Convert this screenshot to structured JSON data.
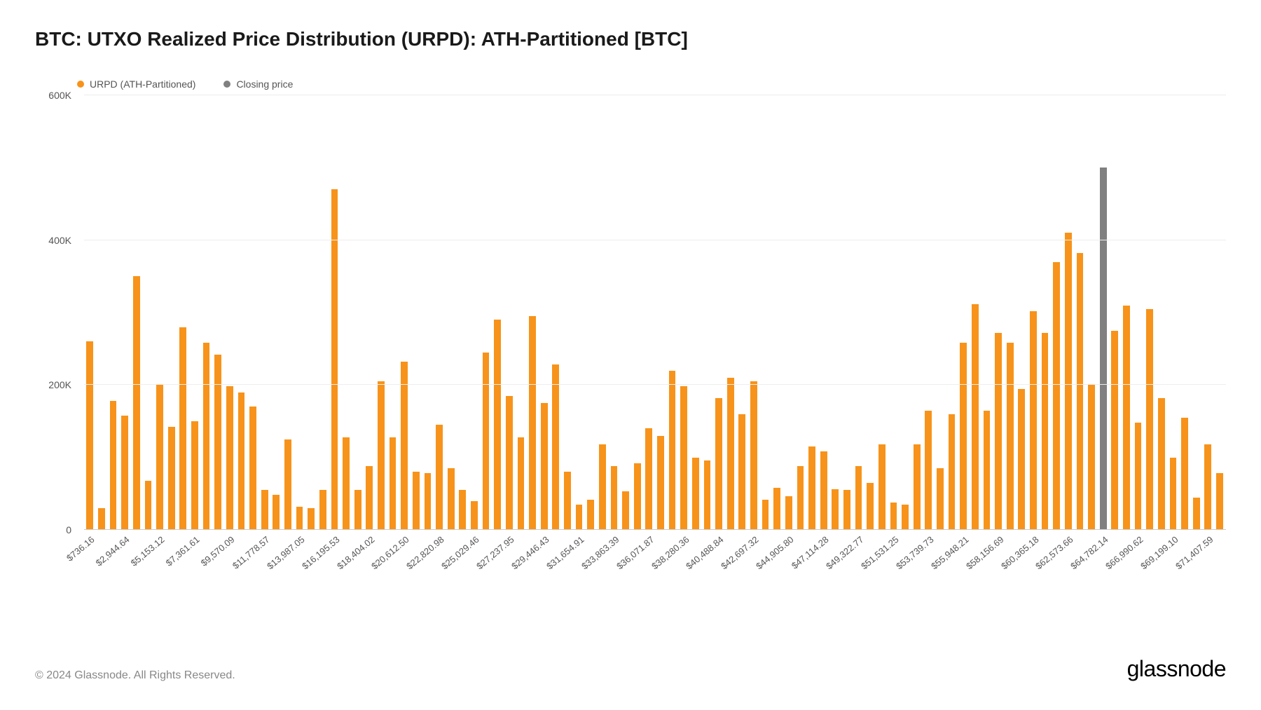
{
  "title": "BTC: UTXO Realized Price Distribution (URPD): ATH-Partitioned [BTC]",
  "legend": [
    {
      "label": "URPD (ATH-Partitioned)",
      "color": "#f7931a"
    },
    {
      "label": "Closing price",
      "color": "#808080"
    }
  ],
  "chart": {
    "type": "bar",
    "y": {
      "max": 600000,
      "ticks": [
        {
          "value": 0,
          "label": "0"
        },
        {
          "value": 200000,
          "label": "200K"
        },
        {
          "value": 400000,
          "label": "400K"
        },
        {
          "value": 600000,
          "label": "600K"
        }
      ]
    },
    "bar_color": "#f7931a",
    "closing_bar_color": "#808080",
    "grid_color": "#ededed",
    "baseline_color": "#cccccc",
    "background": "#ffffff",
    "x_labels": [
      "$736.16",
      "$2,944.64",
      "$5,153.12",
      "$7,361.61",
      "$9,570.09",
      "$11,778.57",
      "$13,987.05",
      "$16,195.53",
      "$18,404.02",
      "$20,612.50",
      "$22,820.98",
      "$25,029.46",
      "$27,237.95",
      "$29,446.43",
      "$31,654.91",
      "$33,863.39",
      "$36,071.87",
      "$38,280.36",
      "$40,488.84",
      "$42,697.32",
      "$44,905.80",
      "$47,114.28",
      "$49,322.77",
      "$51,531.25",
      "$53,739.73",
      "$55,948.21",
      "$58,156.69",
      "$60,365.18",
      "$62,573.66",
      "$64,782.14",
      "$66,990.62",
      "$69,199.10",
      "$71,407.59"
    ],
    "values": [
      260000,
      30000,
      178000,
      158000,
      350000,
      68000,
      200000,
      142000,
      280000,
      150000,
      258000,
      242000,
      198000,
      190000,
      170000,
      55000,
      48000,
      125000,
      32000,
      30000,
      55000,
      470000,
      128000,
      55000,
      88000,
      205000,
      128000,
      232000,
      80000,
      78000,
      145000,
      85000,
      55000,
      40000,
      245000,
      290000,
      185000,
      128000,
      295000,
      175000,
      228000,
      80000,
      35000,
      42000,
      118000,
      88000,
      53000,
      92000,
      140000,
      130000,
      220000,
      198000,
      100000,
      96000,
      182000,
      210000,
      160000,
      205000,
      42000,
      58000,
      46000,
      88000,
      115000,
      108000,
      56000,
      55000,
      88000,
      65000,
      118000,
      38000,
      35000,
      118000,
      165000,
      85000,
      160000,
      258000,
      312000,
      165000,
      272000,
      258000,
      195000,
      302000,
      272000,
      370000,
      410000,
      382000,
      200000,
      500000,
      275000,
      310000,
      148000,
      305000,
      182000,
      100000,
      155000,
      45000,
      118000,
      78000
    ],
    "closing_price_index": 87
  },
  "footer": {
    "copyright": "© 2024 Glassnode. All Rights Reserved.",
    "brand": "glassnode"
  }
}
